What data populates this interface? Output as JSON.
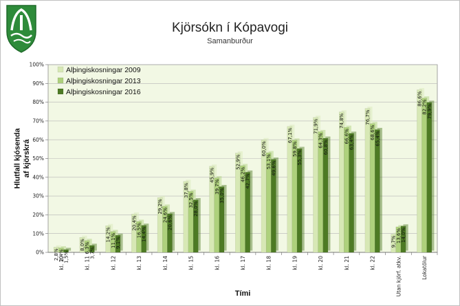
{
  "header": {
    "title": "Kjörsókn  í Kópavogi",
    "subtitle": "Samanburður"
  },
  "colors": {
    "plot_bg": "#f2f8e4",
    "logo_green": "#2e8b3a"
  },
  "chart_data": {
    "type": "bar",
    "title": "Kjörsókn  í Kópavogi",
    "subtitle": "Samanburður",
    "xlabel": "Tími",
    "ylabel": "Hlutfall kjósenda af kjörskrá",
    "ylim": [
      0,
      100
    ],
    "yticks": [
      "0%",
      "10%",
      "20%",
      "30%",
      "40%",
      "50%",
      "60%",
      "70%",
      "80%",
      "90%",
      "100%"
    ],
    "grid": true,
    "legend_position": "top-left",
    "categories": [
      "kl. 10",
      "kl. 11",
      "kl. 12",
      "kl. 13",
      "kl. 14",
      "kl. 15",
      "kl. 16",
      "kl. 17",
      "kl. 18",
      "kl. 19",
      "kl. 20",
      "kl. 21",
      "kl. 22",
      "Utan kjörf. atkv.",
      "Lokatölur"
    ],
    "series": [
      {
        "name": "Alþingiskosningar 2009",
        "color": "#d7e8b5",
        "values": [
          2.8,
          8.0,
          14.2,
          20.4,
          29.2,
          37.8,
          45.9,
          52.9,
          60.0,
          67.1,
          71.9,
          74.8,
          76.7,
          9.7,
          86.6
        ],
        "labels": [
          "2,8%",
          "8,0%",
          "14,2%",
          "20,4%",
          "29,2%",
          "37,8%",
          "45,9%",
          "52,9%",
          "60,0%",
          "67,1%",
          "71,9%",
          "74,8%",
          "76,7%",
          "9,7%",
          "86,6%"
        ]
      },
      {
        "name": "Alþingiskosningar 2013",
        "color": "#aed17c",
        "values": [
          2.4,
          6.3,
          11.1,
          16.5,
          24.6,
          32.5,
          39.7,
          46.2,
          53.1,
          59.8,
          64.3,
          66.6,
          68.6,
          13.6,
          82.2
        ],
        "labels": [
          "2,4%",
          "6,3%",
          "11,1%",
          "16,5%",
          "24,6%",
          "32,5%",
          "39,7%",
          "46,2%",
          "53,1%",
          "59,8%",
          "64,3%",
          "66,6%",
          "68,6%",
          "13,6%",
          "82,2%"
        ]
      },
      {
        "name": "Alþingiskosningar 2016",
        "color": "#4d7a24",
        "values": [
          1.5,
          3.7,
          9.1,
          14.4,
          20.6,
          28.0,
          35.0,
          42.7,
          49.6,
          55.3,
          60.8,
          63.4,
          65.4,
          14.0,
          79.9
        ],
        "labels": [
          "1,5%",
          "3,7%",
          "9,1%",
          "14,4%",
          "20,6%",
          "28,0%",
          "35,0%",
          "42,7%",
          "49,6%",
          "55,3%",
          "60,8%",
          "63,4%",
          "65,4%",
          "14,0%",
          "79,9%"
        ]
      }
    ]
  }
}
